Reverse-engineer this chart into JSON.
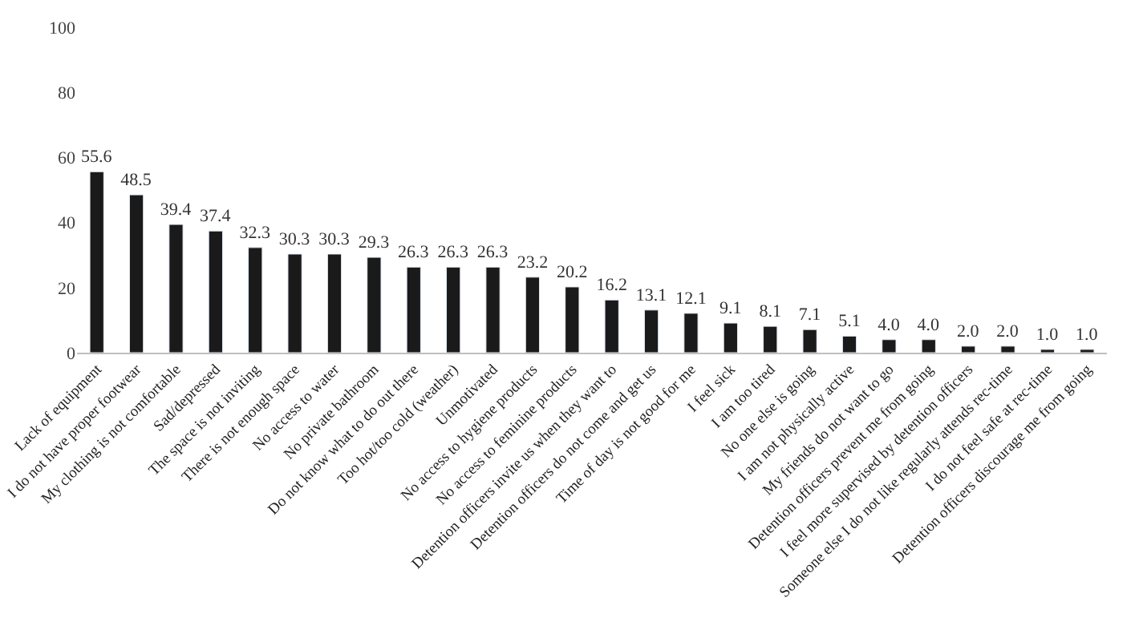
{
  "chart_data": {
    "type": "bar",
    "categories": [
      "Lack of equipment",
      "I do not have proper footwear",
      "My clothing is not comfortable",
      "Sad/depressed",
      "The space is not inviting",
      "There is not enough space",
      "No access to water",
      "No private bathroom",
      "Do not know what to do out there",
      "Too hot/too cold (weather)",
      "Unmotivated",
      "No access to hygiene products",
      "No access to feminine products",
      "Detention officers invite us when they want to",
      "Detention officers do not come and get us",
      "Time of day is not good for me",
      "I feel sick",
      "I am too tired",
      "No one else is going",
      "I am not physically active",
      "My friends do not want to go",
      "Detention officers prevent me from going",
      "I feel more supervised by detention officers",
      "Someone else I do not like regularly attends rec-time",
      "I do not feel safe at rec-time",
      "Detention officers discourage me from going"
    ],
    "values": [
      55.6,
      48.5,
      39.4,
      37.4,
      32.3,
      30.3,
      30.3,
      29.3,
      26.3,
      26.3,
      26.3,
      23.2,
      20.2,
      16.2,
      13.1,
      12.1,
      9.1,
      8.1,
      7.1,
      5.1,
      4.0,
      4.0,
      2.0,
      2.0,
      1.0,
      1.0
    ],
    "value_labels": [
      "55.6",
      "48.5",
      "39.4",
      "37.4",
      "32.3",
      "30.3",
      "30.3",
      "29.3",
      "26.3",
      "26.3",
      "26.3",
      "23.2",
      "20.2",
      "16.2",
      "13.1",
      "12.1",
      "9.1",
      "8.1",
      "7.1",
      "5.1",
      "4.0",
      "4.0",
      "2.0",
      "2.0",
      "1.0",
      "1.0"
    ],
    "color": "#1a1a1a",
    "ylim": [
      0,
      100
    ],
    "yticks": [
      0,
      20,
      40,
      60,
      80,
      100
    ]
  }
}
